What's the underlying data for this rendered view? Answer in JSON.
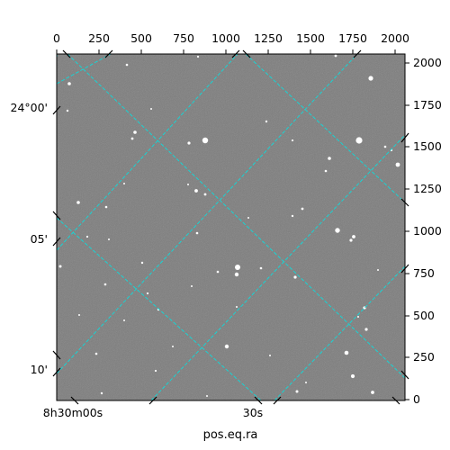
{
  "figure": {
    "background_color": "#7a7a7a",
    "grid_color": "#19d3d3",
    "star_color": "#ffffff"
  },
  "axes": {
    "top_ticks": [
      "0",
      "250",
      "500",
      "750",
      "1000",
      "1250",
      "1500",
      "1750",
      "2000"
    ],
    "right_ticks": [
      "0",
      "250",
      "500",
      "750",
      "1000",
      "1250",
      "1500",
      "1750",
      "2000"
    ],
    "left_ticks": [
      "24°00'",
      "05'",
      "10'"
    ],
    "bottom_ticks": [
      "8h30m00s",
      "30s"
    ],
    "bottom_title": "pos.eq.ra"
  }
}
